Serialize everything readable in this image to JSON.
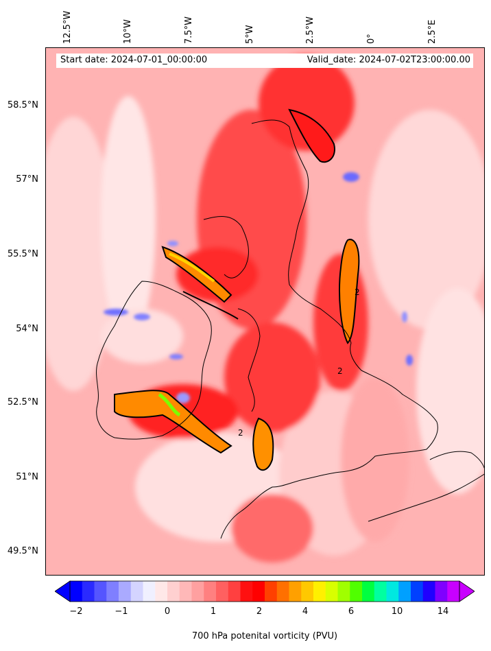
{
  "map": {
    "start_date": "Start date: 2024-07-01_00:00:00",
    "valid_date": "Valid_date: 2024-07-02T23:00:00.00",
    "lon_labels": [
      "12.5°W",
      "10°W",
      "7.5°W",
      "5°W",
      "2.5°W",
      "0°",
      "2.5°E"
    ],
    "lat_labels": [
      "58.5°N",
      "57°N",
      "55.5°N",
      "54°N",
      "52.5°N",
      "51°N",
      "49.5°N"
    ],
    "contour_label": "2"
  },
  "colorbar": {
    "label": "700 hPa potenital vorticity (PVU)",
    "tick_labels": [
      "−2",
      "−1",
      "0",
      "1",
      "2",
      "4",
      "6",
      "10",
      "14"
    ],
    "colors": [
      "#0000ff",
      "#2a2aff",
      "#5555ff",
      "#7f7fff",
      "#aaaaff",
      "#d4d4ff",
      "#f0f0ff",
      "#ffe8e8",
      "#ffd0d0",
      "#ffb8b8",
      "#ffa0a0",
      "#ff8080",
      "#ff6060",
      "#ff4040",
      "#ff1010",
      "#ff0000",
      "#ff4000",
      "#ff7000",
      "#ffa000",
      "#ffc800",
      "#fff000",
      "#d8ff00",
      "#a0ff00",
      "#50ff00",
      "#00ff40",
      "#00ffa0",
      "#00e8e0",
      "#00a0ff",
      "#0040ff",
      "#2000ff",
      "#8000ff",
      "#c800ff"
    ]
  }
}
